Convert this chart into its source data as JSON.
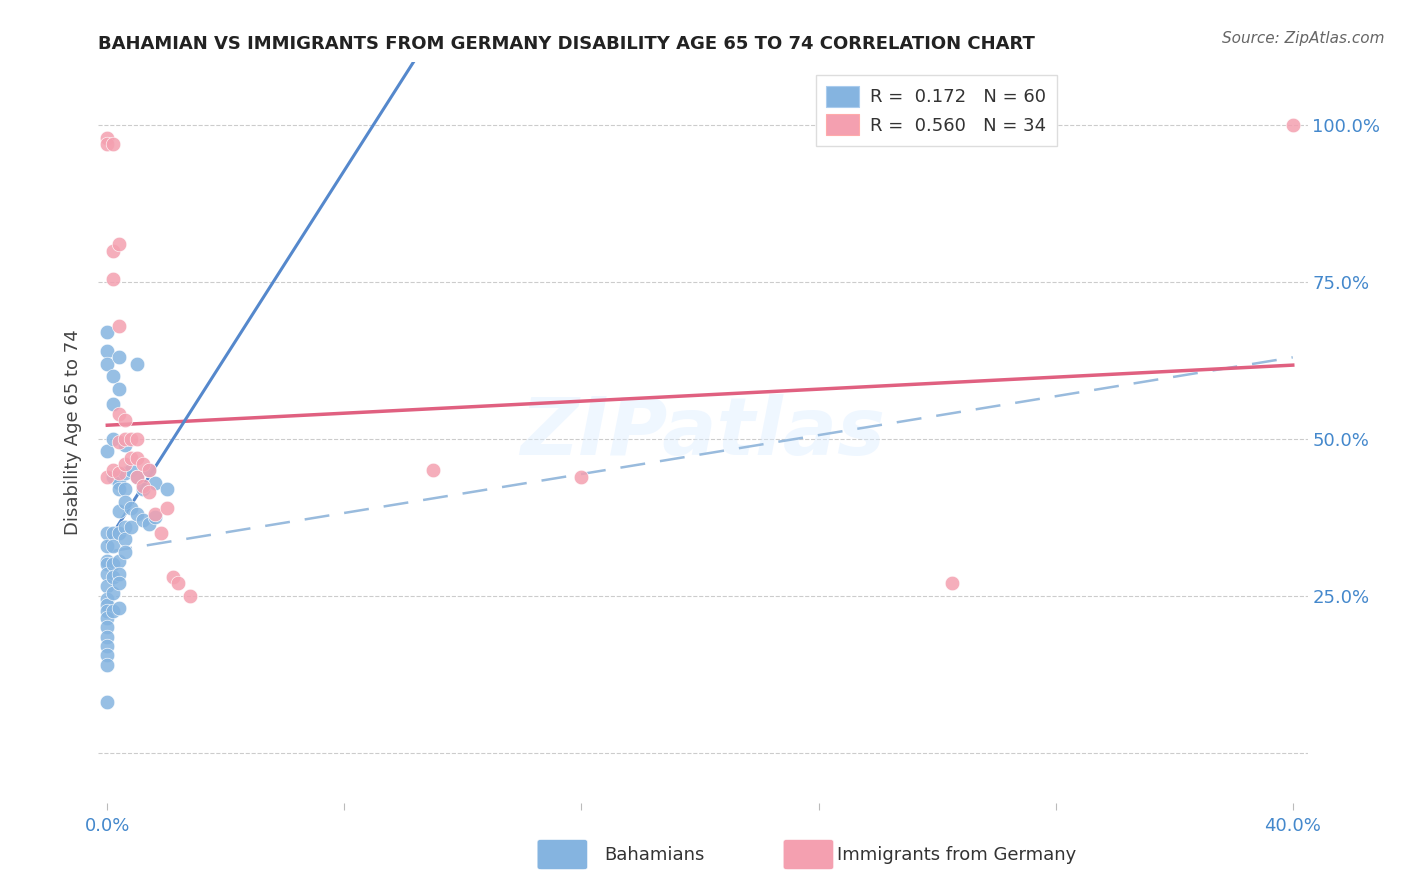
{
  "title": "BAHAMIAN VS IMMIGRANTS FROM GERMANY DISABILITY AGE 65 TO 74 CORRELATION CHART",
  "source": "Source: ZipAtlas.com",
  "ylabel": "Disability Age 65 to 74",
  "R_blue": 0.172,
  "N_blue": 60,
  "R_pink": 0.56,
  "N_pink": 34,
  "blue_color": "#85B4E0",
  "pink_color": "#F4A0B0",
  "blue_line_color": "#5588CC",
  "pink_line_color": "#E06080",
  "dashed_line_color": "#99BBDD",
  "watermark": "ZIPatlas",
  "bahamians_x": [
    0.0,
    0.0,
    0.0,
    0.0,
    0.0,
    0.0,
    0.0,
    0.0,
    0.0,
    0.0,
    0.0,
    0.0,
    0.0,
    0.0,
    0.0,
    0.0,
    0.0,
    0.0,
    0.0,
    0.0,
    0.002,
    0.002,
    0.002,
    0.002,
    0.002,
    0.002,
    0.002,
    0.002,
    0.002,
    0.002,
    0.004,
    0.004,
    0.004,
    0.004,
    0.004,
    0.004,
    0.004,
    0.004,
    0.004,
    0.004,
    0.006,
    0.006,
    0.006,
    0.006,
    0.006,
    0.006,
    0.006,
    0.008,
    0.008,
    0.008,
    0.01,
    0.01,
    0.01,
    0.012,
    0.012,
    0.014,
    0.014,
    0.016,
    0.016,
    0.02
  ],
  "bahamians_y": [
    0.67,
    0.64,
    0.62,
    0.48,
    0.35,
    0.33,
    0.305,
    0.3,
    0.285,
    0.265,
    0.245,
    0.235,
    0.225,
    0.215,
    0.2,
    0.185,
    0.17,
    0.155,
    0.14,
    0.08,
    0.6,
    0.555,
    0.5,
    0.44,
    0.35,
    0.33,
    0.3,
    0.28,
    0.255,
    0.225,
    0.63,
    0.58,
    0.43,
    0.42,
    0.385,
    0.35,
    0.305,
    0.285,
    0.27,
    0.23,
    0.49,
    0.445,
    0.42,
    0.4,
    0.36,
    0.34,
    0.32,
    0.45,
    0.39,
    0.36,
    0.62,
    0.44,
    0.38,
    0.42,
    0.37,
    0.45,
    0.365,
    0.43,
    0.375,
    0.42
  ],
  "germany_x": [
    0.0,
    0.0,
    0.0,
    0.002,
    0.002,
    0.002,
    0.002,
    0.004,
    0.004,
    0.004,
    0.004,
    0.004,
    0.006,
    0.006,
    0.006,
    0.008,
    0.008,
    0.01,
    0.01,
    0.01,
    0.012,
    0.012,
    0.014,
    0.014,
    0.016,
    0.018,
    0.02,
    0.022,
    0.024,
    0.028,
    0.11,
    0.16,
    0.285,
    0.4
  ],
  "germany_y": [
    0.98,
    0.97,
    0.44,
    0.97,
    0.8,
    0.755,
    0.45,
    0.81,
    0.68,
    0.54,
    0.495,
    0.445,
    0.53,
    0.5,
    0.46,
    0.5,
    0.47,
    0.5,
    0.47,
    0.44,
    0.46,
    0.425,
    0.45,
    0.415,
    0.38,
    0.35,
    0.39,
    0.28,
    0.27,
    0.25,
    0.45,
    0.44,
    0.27,
    1.0
  ],
  "xlim_min": -0.003,
  "xlim_max": 0.405,
  "ylim_min": -0.08,
  "ylim_max": 1.1,
  "y_ticks": [
    0.0,
    0.25,
    0.5,
    0.75,
    1.0
  ],
  "x_ticks": [
    0.0,
    0.08,
    0.16,
    0.24,
    0.32,
    0.4
  ]
}
